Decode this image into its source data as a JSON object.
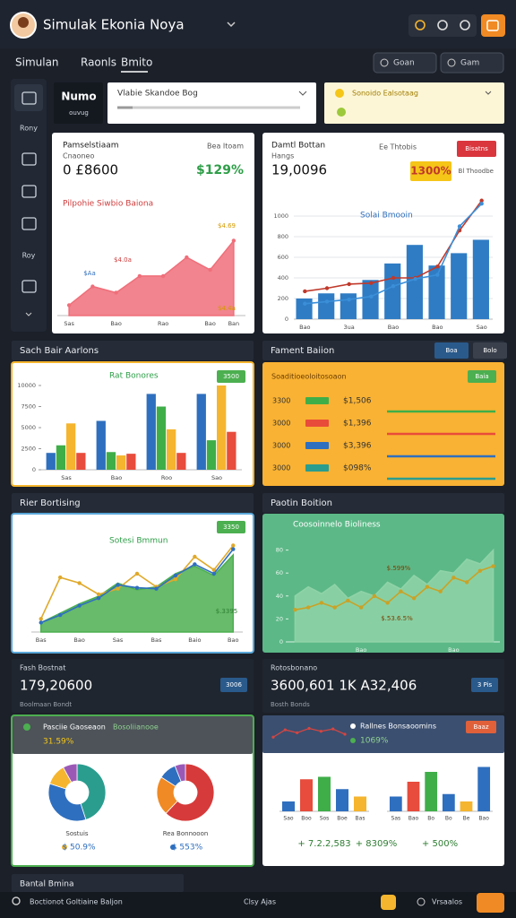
{
  "header": {
    "title": "Simulak Ekonia Noya"
  },
  "tabs": [
    "Simulan",
    "Raonls",
    "Bmito"
  ],
  "toolbar_buttons": [
    "Goan",
    "Gam"
  ],
  "sidebar_labels": [
    "Rony",
    "Roy"
  ],
  "top_row": {
    "logo": "Numo",
    "logo_sub": "ouvug",
    "dropdown": "Vlabie Skandoe Bog",
    "notice": "Sonoido Ealsotaag"
  },
  "revenue": {
    "title": "Pamselstiaam",
    "subtitle": "Cnaoneo",
    "value": "0 £8600",
    "right_label": "Bea Itoam",
    "change": "$129%",
    "chart": {
      "type": "area",
      "title": "Pilpohie Siwbio Baiona",
      "categories": [
        "Sas",
        null,
        "Bao",
        null,
        "Rao",
        null,
        "Bao",
        "Ban"
      ],
      "ylim": [
        0,
        50
      ],
      "series": [
        {
          "type": "area",
          "color": "#ef6f7a",
          "values": [
            5,
            14,
            11,
            19,
            19,
            28,
            22,
            36
          ],
          "markers": true
        }
      ],
      "annotations": [
        "$Aa",
        "$4.0a",
        "$4.69",
        "$4.4a"
      ]
    }
  },
  "stats": {
    "title": "Damtl Bottan",
    "subtitle": "Hangs",
    "value": "19,0096",
    "right_label": "Ee Thtobis",
    "badge": "Bisatns",
    "change": "1300%",
    "note": "Bl Thoodbe",
    "chart": {
      "type": "bar",
      "title": "Solai Bmooin",
      "categories": [
        "Bao",
        null,
        "3ua",
        null,
        "Bao",
        null,
        "Bao",
        null,
        "Sao"
      ],
      "ylim": [
        0,
        1200
      ],
      "yticks": [
        0,
        200,
        400,
        600,
        800,
        1000
      ],
      "grid": true,
      "series": [
        {
          "type": "bar",
          "color": "#2f7cc4",
          "values": [
            200,
            250,
            250,
            380,
            540,
            720,
            520,
            640,
            770
          ]
        },
        {
          "type": "line",
          "color": "#c0392b",
          "values": [
            270,
            300,
            340,
            350,
            400,
            400,
            510,
            860,
            1150
          ],
          "markers": true
        },
        {
          "type": "line",
          "color": "#3a8fd8",
          "values": [
            150,
            170,
            190,
            220,
            320,
            390,
            430,
            900,
            1120
          ],
          "markers": true
        }
      ]
    }
  },
  "sections": {
    "left_1": "Sach Bair Aarlons",
    "right_1": "Fament Baiion",
    "right_1_buttons": [
      "Boa",
      "Bolo"
    ],
    "left_2": "Rier Bortising",
    "right_2": "Paotin Boition",
    "bottom": "Bantal Bmina"
  },
  "grouped": {
    "badge": "3500",
    "chart": {
      "type": "bar",
      "title": "Rat Bonores",
      "categories": [
        "Sas",
        "Bao",
        "Roo",
        "Sao"
      ],
      "ylim": [
        0,
        10000
      ],
      "yticks": [
        0,
        2500,
        5000,
        7500,
        10000
      ],
      "grid": false,
      "series": [
        {
          "type": "bar",
          "color": "#2f6fbf",
          "values": [
            2000,
            5800,
            9000,
            9000
          ]
        },
        {
          "type": "bar",
          "color": "#3fae49",
          "values": [
            2900,
            2100,
            7500,
            3500
          ]
        },
        {
          "type": "bar",
          "color": "#f5b52e",
          "values": [
            5500,
            1700,
            4800,
            10000
          ]
        },
        {
          "type": "bar",
          "color": "#e74c3c",
          "values": [
            2000,
            1900,
            2000,
            4500
          ]
        }
      ]
    }
  },
  "rows_panel": {
    "header": "Soaditioeoloitosoaon",
    "badge": "Baia",
    "rows": [
      {
        "label": "3300",
        "value": "$1,506",
        "color": "#3fae49"
      },
      {
        "label": "3000",
        "value": "$1,396",
        "color": "#e84b3a"
      },
      {
        "label": "3000",
        "value": "$3,396",
        "color": "#2f6fbf"
      },
      {
        "label": "3000",
        "value": "$098%",
        "color": "#2a9d8f"
      }
    ]
  },
  "growth": {
    "badge": "3350",
    "label": "$.3395",
    "chart": {
      "type": "area",
      "title": "Sotesi Bmmun",
      "categories": [
        "Bas",
        null,
        "Bao",
        null,
        "Sas",
        null,
        "Bas",
        null,
        "Baio",
        null,
        "Bao"
      ],
      "ylim": [
        0,
        100
      ],
      "series": [
        {
          "type": "area",
          "color": "#4caf50",
          "values": [
            10,
            20,
            30,
            38,
            52,
            45,
            48,
            62,
            70,
            60,
            82
          ]
        },
        {
          "type": "line",
          "color": "#e0a92a",
          "values": [
            14,
            58,
            52,
            40,
            46,
            62,
            48,
            56,
            80,
            66,
            92
          ],
          "markers": true
        },
        {
          "type": "line",
          "color": "#2f6fbf",
          "values": [
            10,
            18,
            28,
            36,
            50,
            47,
            46,
            60,
            72,
            62,
            88
          ],
          "markers": true
        }
      ]
    }
  },
  "trend": {
    "labels": [
      "$.599%",
      "$.53.6.5%"
    ],
    "chart": {
      "type": "area",
      "title": "Coosoinnelo Bioliness",
      "categories": [
        null,
        null,
        null,
        null,
        null,
        "Bao",
        null,
        null,
        null,
        null,
        null,
        null,
        "Bao",
        null,
        null,
        null
      ],
      "ylim": [
        0,
        100
      ],
      "yticks": [
        0,
        20,
        40,
        60,
        80
      ],
      "grid": false,
      "series": [
        {
          "type": "area",
          "color": "#8fd3a8",
          "values": [
            40,
            48,
            42,
            50,
            38,
            44,
            40,
            52,
            46,
            58,
            50,
            62,
            60,
            72,
            68,
            80
          ]
        },
        {
          "type": "line",
          "color": "#c9a227",
          "values": [
            28,
            30,
            34,
            30,
            36,
            30,
            40,
            34,
            44,
            38,
            48,
            44,
            56,
            52,
            62,
            66
          ],
          "markers": true
        }
      ]
    }
  },
  "summary_left": {
    "label": "Fash Bostnat",
    "value": "179,20600",
    "sub": "Boolmaan Bondt",
    "badge": "3006"
  },
  "summary_right": {
    "label": "Rotosbonano",
    "value": "3600,601 1K A32,406",
    "sub": "Bosth Bonds",
    "badge": "3 Pis"
  },
  "donuts": {
    "header": "Pasciie Gaoseaon",
    "header_right": "Bosoliianooe",
    "change": "31.59%",
    "items": [
      {
        "type": "pie",
        "values": [
          45,
          35,
          12,
          8
        ],
        "colors": [
          "#2a9d8f",
          "#2f6fbf",
          "#f5b52e",
          "#9b59b6"
        ],
        "label": "Sostuis",
        "value_text": "$ 50.9%"
      },
      {
        "type": "pie",
        "values": [
          62,
          22,
          10,
          6
        ],
        "colors": [
          "#d63a3a",
          "#f08a24",
          "#2f6fbf",
          "#9b59b6"
        ],
        "label": "Rea Bonnooon",
        "value_text": "$ 553%"
      }
    ]
  },
  "bars_panel": {
    "header": "Rallnes Bonsaoomins",
    "change": "1069%",
    "badge": "Baaz",
    "spark": {
      "type": "line",
      "color": "#d64541",
      "values": [
        30,
        55,
        45,
        60,
        50,
        58,
        40
      ],
      "ylim": [
        0,
        80
      ]
    },
    "charts": [
      {
        "type": "bar",
        "categories": [
          "Sao",
          "Boo",
          "Sos",
          "Boe",
          "Bas"
        ],
        "values": [
          20,
          65,
          70,
          45,
          30
        ],
        "colors": [
          "#2f6fbf",
          "#e74c3c",
          "#3fae49",
          "#2f6fbf",
          "#f5b52e"
        ],
        "ylim": [
          0,
          100
        ],
        "footer": "+ 7.2.2,583"
      },
      {
        "type": "bar",
        "categories": [
          "Sas",
          "Bao",
          "Bo",
          "Bo",
          "Be",
          "Bao"
        ],
        "values": [
          30,
          60,
          80,
          35,
          20,
          90
        ],
        "colors": [
          "#2f6fbf",
          "#e74c3c",
          "#3fae49",
          "#2f6fbf",
          "#f5b52e",
          "#2f6fbf"
        ],
        "ylim": [
          0,
          100
        ],
        "footer": "+ 500%"
      }
    ],
    "middle_footer": "+ 8309%"
  },
  "bottom_bar": {
    "search": "Boctionot Goltiaine Baljon",
    "center": "Clsy Ajas",
    "right": "Vrsaalos"
  }
}
